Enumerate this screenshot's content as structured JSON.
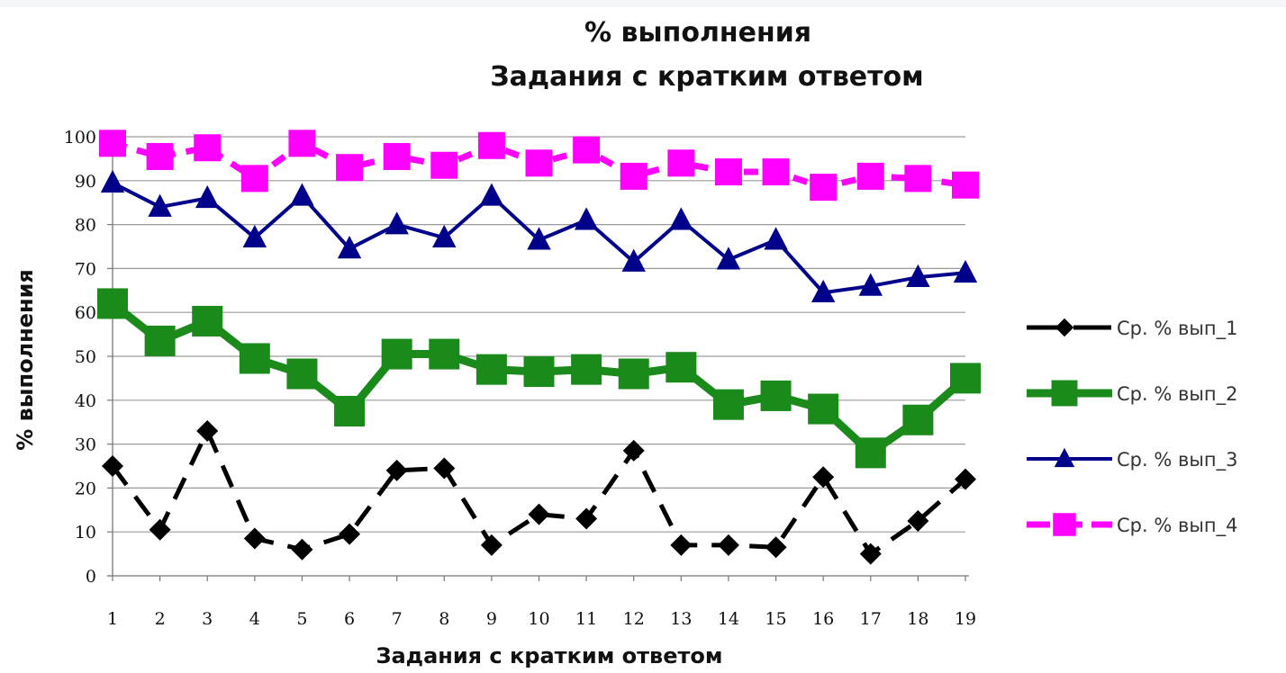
{
  "chart_data": {
    "type": "line",
    "title": "% выполнения",
    "subtitle": "Задания с кратким ответом",
    "xlabel": "Задания с кратким ответом",
    "ylabel": "% выполнения",
    "categories": [
      "1",
      "2",
      "3",
      "4",
      "5",
      "6",
      "7",
      "8",
      "9",
      "10",
      "11",
      "12",
      "13",
      "14",
      "15",
      "16",
      "17",
      "18",
      "19"
    ],
    "ylim": [
      0,
      100
    ],
    "yticks": [
      "0",
      "10",
      "20",
      "30",
      "40",
      "50",
      "60",
      "70",
      "80",
      "90",
      "100"
    ],
    "grid": true,
    "legend_position": "right",
    "series": [
      {
        "name": "Ср. % вып_1",
        "color": "#000000",
        "marker": "diamond",
        "dash": true,
        "values": [
          25,
          10.5,
          33,
          8.5,
          6,
          9.5,
          24,
          24.5,
          7,
          14,
          13,
          28.5,
          7,
          7,
          6.5,
          22.5,
          5,
          12.5,
          22
        ]
      },
      {
        "name": "Ср. % вып_2",
        "color": "#1a8a1a",
        "marker": "square",
        "dash": false,
        "values": [
          62,
          53.5,
          58,
          49.5,
          46,
          37.5,
          50.5,
          50.5,
          47,
          46.5,
          47,
          46,
          47.5,
          39,
          41,
          38,
          28,
          35.5,
          45
        ]
      },
      {
        "name": "Ср. % вып_3",
        "color": "#00008b",
        "marker": "triangle",
        "dash": false,
        "values": [
          89.5,
          84,
          86,
          77,
          86.5,
          74.5,
          80,
          77,
          86.5,
          76.5,
          81,
          71.5,
          81,
          72,
          76.5,
          64.5,
          66,
          68,
          69
        ]
      },
      {
        "name": "Ср. % вып_4",
        "color": "#ff00ff",
        "marker": "square",
        "dash": true,
        "values": [
          98.5,
          95.5,
          97.5,
          90.5,
          98.5,
          93,
          95.5,
          93.5,
          98,
          94,
          97,
          91,
          94,
          92,
          92,
          88.5,
          91,
          90.5,
          89
        ]
      }
    ]
  }
}
